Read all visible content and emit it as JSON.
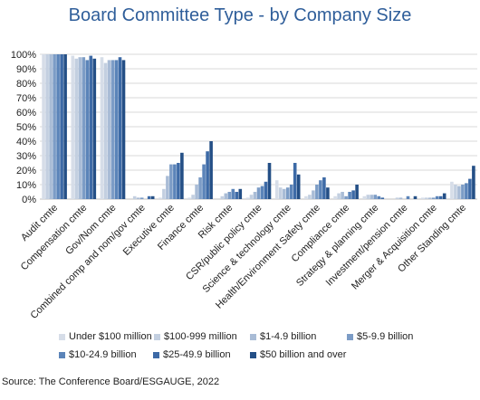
{
  "chart_data": {
    "type": "bar",
    "title": "Board Committee Type - by Company Size",
    "xlabel": "",
    "ylabel": "",
    "ylim": [
      0,
      100
    ],
    "yticks": [
      "0%",
      "10%",
      "20%",
      "30%",
      "40%",
      "50%",
      "60%",
      "70%",
      "80%",
      "90%",
      "100%"
    ],
    "grid": true,
    "legend_position": "bottom",
    "categories": [
      "Audit cmte",
      "Compensation cmte",
      "Gov/Nom cmte",
      "Combined comp and nom/gov cmte",
      "Executive cmte",
      "Finance cmte",
      "Risk cmte",
      "CSR/public policy cmte",
      "Science & technology cmte",
      "Health/Environment Safety cmte",
      "Compliance cmte",
      "Strategy & planning cmte",
      "Investment/pension cmte",
      "Merger & Acquisition cmte",
      "Other Standing cmte"
    ],
    "series": [
      {
        "name": "Under $100 million",
        "color": "#d6dde8",
        "values": [
          100,
          99,
          98,
          0,
          1,
          1,
          0,
          1,
          13,
          2,
          2,
          2,
          0,
          1,
          12
        ]
      },
      {
        "name": "$100-999 million",
        "color": "#c3cfe0",
        "values": [
          100,
          97,
          94,
          2,
          7,
          3,
          2,
          3,
          8,
          3,
          4,
          3,
          1,
          1,
          10
        ]
      },
      {
        "name": "$1-4.9 billion",
        "color": "#a9bcd6",
        "values": [
          100,
          98,
          96,
          1,
          16,
          10,
          4,
          5,
          7,
          6,
          5,
          3,
          1,
          1,
          9
        ]
      },
      {
        "name": "$5-9.9 billion",
        "color": "#7c9cc6",
        "values": [
          100,
          98,
          96,
          1,
          24,
          15,
          5,
          8,
          8,
          10,
          2,
          3,
          0,
          1,
          10
        ]
      },
      {
        "name": "$10-24.9 billion",
        "color": "#5b84b9",
        "values": [
          100,
          96,
          96,
          0,
          24,
          24,
          7,
          9,
          10,
          13,
          5,
          2,
          2,
          2,
          11
        ]
      },
      {
        "name": "$25-49.9 billion",
        "color": "#3d6aa6",
        "values": [
          100,
          99,
          98,
          2,
          25,
          33,
          5,
          12,
          25,
          15,
          6,
          1,
          0,
          2,
          14
        ]
      },
      {
        "name": "$50 billion and over",
        "color": "#244f86",
        "values": [
          100,
          97,
          96,
          2,
          32,
          40,
          7,
          25,
          17,
          8,
          10,
          0,
          2,
          4,
          23
        ]
      }
    ]
  },
  "source": "Source: The Conference Board/ESGAUGE, 2022"
}
